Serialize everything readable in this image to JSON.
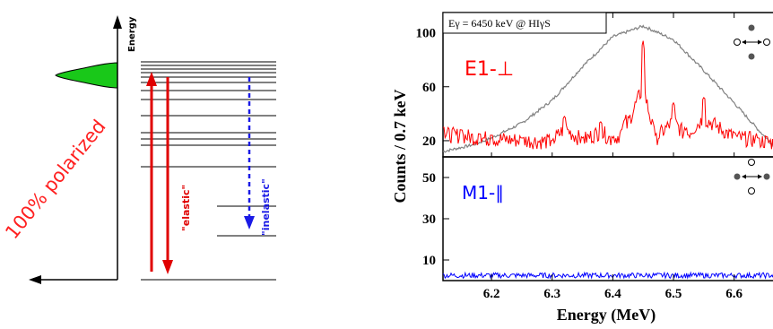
{
  "scheme": {
    "energy_label": "Energy",
    "polarization_label": "100% polarized",
    "elastic_label": "\"elastic\"",
    "inelastic_label": "\"inelastic\"",
    "colors": {
      "gaussian": "#19c819",
      "elastic": "#e00000",
      "inelastic": "#1a1ae6",
      "line": "#000000"
    }
  },
  "panel": {
    "beam_label": "Eγ = 6450 keV @ HIγS",
    "e1_label": "E1-⊥",
    "m1_label": "M1-∥",
    "ylabel": "Counts / 0.7 keV",
    "xlabel": "Energy (MeV)",
    "colors": {
      "e1": "#ff0000",
      "m1": "#0000ff",
      "beam": "#808080",
      "frame": "#000000"
    }
  },
  "chart_data": [
    {
      "type": "line",
      "title": "E1-⊥",
      "annotation": "Eγ = 6450 keV @ HIγS",
      "xlabel": "Energy (MeV)",
      "ylabel": "Counts / 0.7 keV",
      "xlim": [
        6.12,
        6.67
      ],
      "ylim": [
        8,
        115
      ],
      "x_ticks": [
        6.2,
        6.3,
        6.4,
        6.5,
        6.6
      ],
      "y_ticks": [
        20,
        60,
        100
      ],
      "series": [
        {
          "name": "beam profile",
          "x": [
            6.12,
            6.17,
            6.2,
            6.25,
            6.3,
            6.35,
            6.4,
            6.45,
            6.5,
            6.55,
            6.6,
            6.64,
            6.67
          ],
          "values": [
            12,
            17,
            22,
            33,
            50,
            75,
            97,
            105,
            95,
            72,
            48,
            28,
            14
          ]
        },
        {
          "name": "E1 spectrum",
          "x": [
            6.12,
            6.15,
            6.18,
            6.2,
            6.25,
            6.3,
            6.32,
            6.35,
            6.38,
            6.4,
            6.42,
            6.45,
            6.47,
            6.5,
            6.52,
            6.55,
            6.6,
            6.64,
            6.67
          ],
          "values": [
            30,
            28,
            25,
            24,
            22,
            20,
            38,
            22,
            34,
            22,
            36,
            94,
            24,
            48,
            28,
            52,
            26,
            22,
            18
          ]
        }
      ]
    },
    {
      "type": "line",
      "title": "M1-∥",
      "xlabel": "Energy (MeV)",
      "ylabel": "Counts / 0.7 keV",
      "xlim": [
        6.12,
        6.67
      ],
      "ylim": [
        0,
        60
      ],
      "x_ticks": [
        6.2,
        6.3,
        6.4,
        6.5,
        6.6
      ],
      "y_ticks": [
        10,
        30,
        50
      ],
      "series": [
        {
          "name": "M1 spectrum",
          "x": [
            6.12,
            6.2,
            6.3,
            6.4,
            6.5,
            6.6,
            6.67
          ],
          "values": [
            2,
            2,
            2,
            2,
            2,
            2,
            2
          ]
        }
      ]
    }
  ]
}
